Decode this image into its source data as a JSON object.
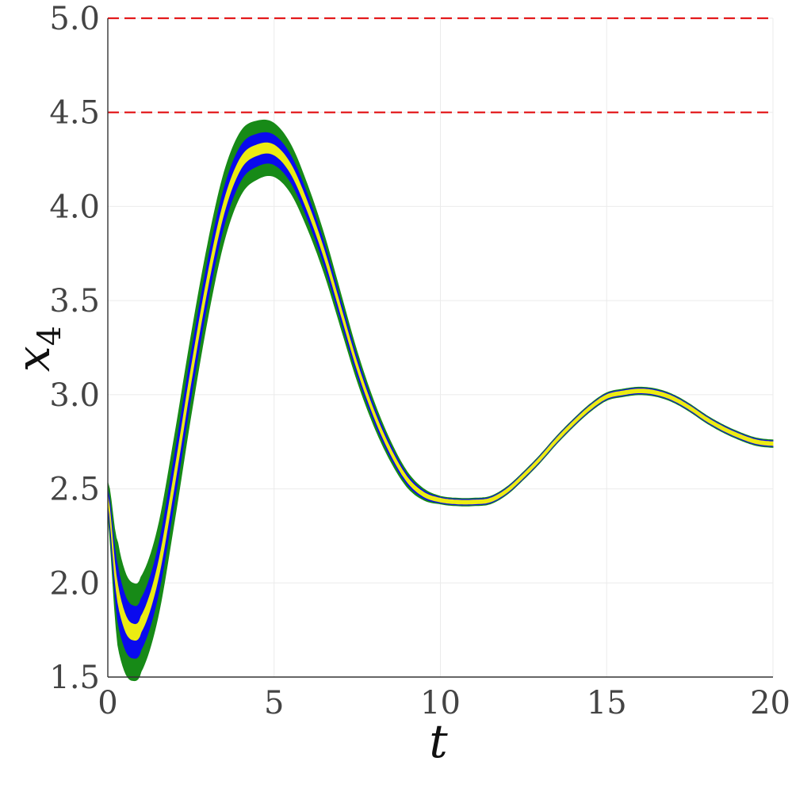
{
  "chart_data": {
    "type": "line",
    "title": "",
    "xlabel": "t",
    "ylabel": "x",
    "ylabel_subscript": "4",
    "xlim": [
      0,
      20
    ],
    "ylim": [
      1.5,
      5.0
    ],
    "xticks": [
      "0",
      "5",
      "10",
      "15",
      "20"
    ],
    "yticks": [
      "1.5",
      "2.0",
      "2.5",
      "3.0",
      "3.5",
      "4.0",
      "4.5",
      "5.0"
    ],
    "grid": true,
    "legend": "none",
    "reference_lines": [
      {
        "y": 4.5,
        "style": "dashed",
        "color": "#e31a1c"
      },
      {
        "y": 5.0,
        "style": "dashed",
        "color": "#e31a1c"
      }
    ],
    "center": {
      "t": [
        0,
        0.25,
        0.5,
        0.75,
        1,
        1.5,
        2,
        2.5,
        3,
        3.5,
        4,
        4.5,
        5,
        5.5,
        6,
        6.5,
        7,
        7.5,
        8,
        8.5,
        9,
        9.5,
        10,
        10.5,
        11,
        11.5,
        12,
        12.5,
        13,
        13.5,
        14,
        14.5,
        15,
        15.5,
        16,
        16.5,
        17,
        17.5,
        18,
        18.5,
        19,
        19.5,
        20
      ],
      "x4": [
        2.45,
        2.0,
        1.8,
        1.74,
        1.78,
        2.05,
        2.55,
        3.1,
        3.6,
        4.0,
        4.23,
        4.3,
        4.3,
        4.2,
        4.0,
        3.75,
        3.45,
        3.15,
        2.9,
        2.7,
        2.55,
        2.47,
        2.44,
        2.43,
        2.43,
        2.44,
        2.49,
        2.57,
        2.66,
        2.76,
        2.85,
        2.93,
        2.99,
        3.01,
        3.02,
        3.01,
        2.98,
        2.93,
        2.87,
        2.82,
        2.78,
        2.75,
        2.74
      ]
    },
    "bands": [
      {
        "color": "#178a17",
        "width_at_peak": 0.28,
        "width_min": 0.02
      },
      {
        "color": "#0a0aee",
        "width_at_peak": 0.15,
        "width_min": 0.015
      },
      {
        "color": "#ecec12",
        "width_at_peak": 0.045,
        "width_min": 0.01
      }
    ]
  }
}
